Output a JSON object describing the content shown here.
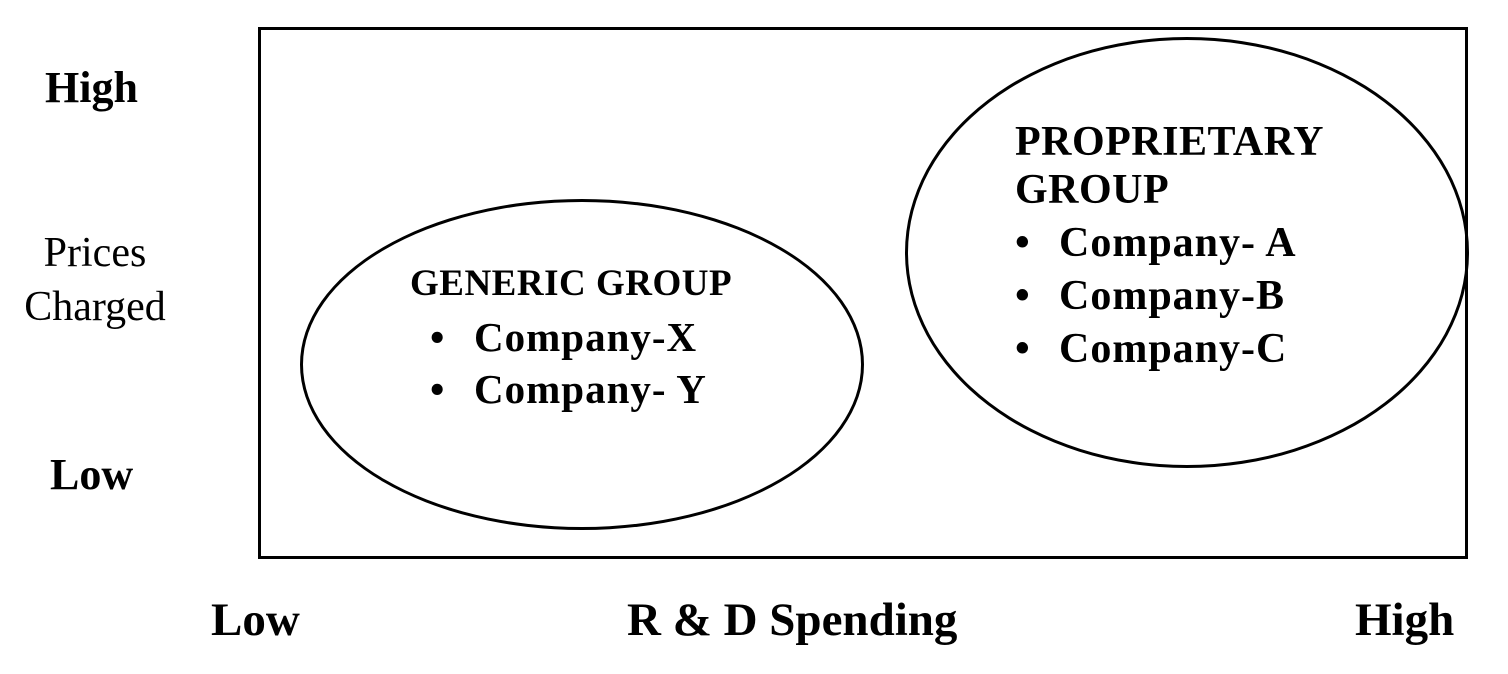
{
  "y_axis": {
    "high": "High",
    "label_line1": "Prices",
    "label_line2": "Charged",
    "low": "Low"
  },
  "x_axis": {
    "low": "Low",
    "label": "R & D Spending",
    "high": "High"
  },
  "groups": {
    "generic": {
      "title": "GENERIC GROUP",
      "items": [
        "Company-X",
        "Company- Y"
      ]
    },
    "proprietary": {
      "title_line1": "PROPRIETARY",
      "title_line2": "GROUP",
      "items": [
        "Company- A",
        "Company-B",
        "Company-C"
      ]
    }
  },
  "bullet_glyph": "•"
}
